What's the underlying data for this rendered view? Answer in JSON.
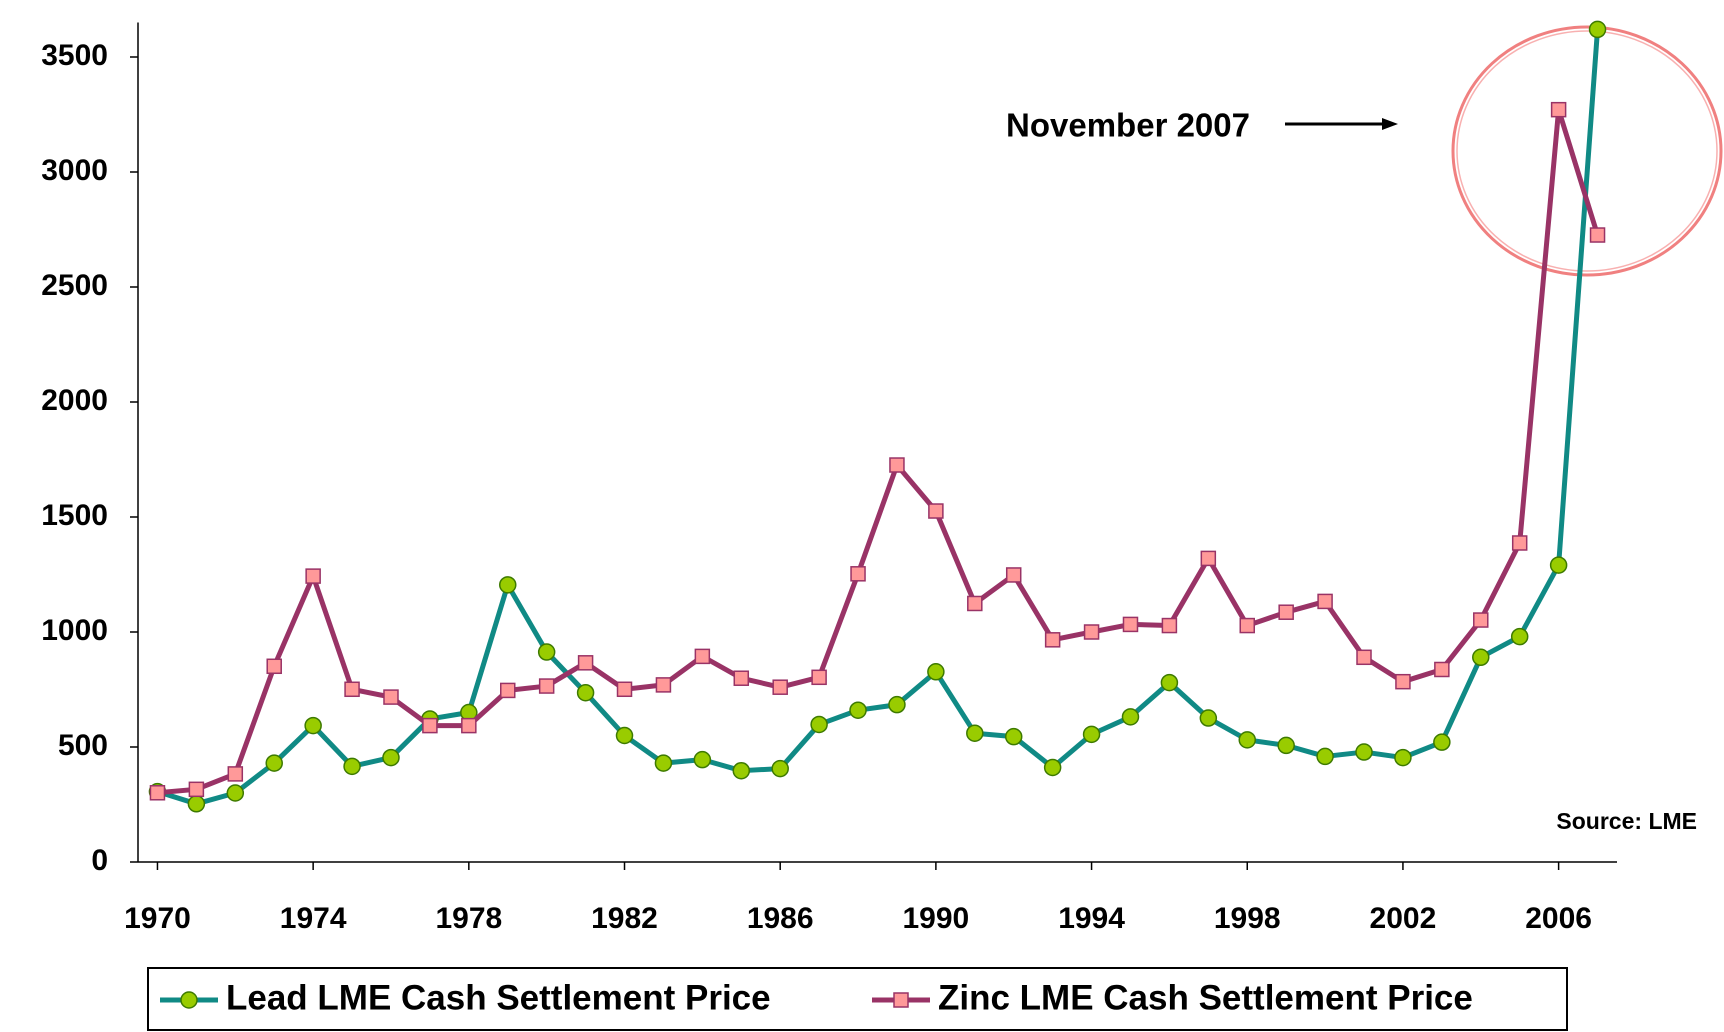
{
  "chart_data": {
    "type": "line",
    "x": [
      1970,
      1971,
      1972,
      1973,
      1974,
      1975,
      1976,
      1977,
      1978,
      1979,
      1980,
      1981,
      1982,
      1983,
      1984,
      1985,
      1986,
      1987,
      1988,
      1989,
      1990,
      1991,
      1992,
      1993,
      1994,
      1995,
      1996,
      1997,
      1998,
      1999,
      2000,
      2001,
      2002,
      2003,
      2004,
      2005,
      2006,
      2007
    ],
    "xlim": [
      1969.5,
      2007.5
    ],
    "xticks": [
      1970,
      1974,
      1978,
      1982,
      1986,
      1990,
      1994,
      1998,
      2002,
      2006
    ],
    "ylim": [
      0,
      3650
    ],
    "yticks": [
      0,
      500,
      1000,
      1500,
      2000,
      2500,
      3000,
      3500
    ],
    "series": [
      {
        "name": "Lead LME Cash Settlement Price",
        "color": "#108a85",
        "marker_color": "#99cc00",
        "values": [
          306,
          253,
          300,
          430,
          593,
          416,
          454,
          622,
          650,
          1205,
          913,
          736,
          550,
          430,
          445,
          397,
          406,
          598,
          660,
          684,
          827,
          560,
          545,
          411,
          555,
          631,
          780,
          626,
          531,
          507,
          459,
          478,
          454,
          521,
          890,
          980,
          1291,
          3620
        ]
      },
      {
        "name": "Zinc LME Cash Settlement Price",
        "color": "#993366",
        "marker_color": "#ff9999",
        "values": [
          301,
          316,
          383,
          851,
          1243,
          751,
          717,
          593,
          593,
          746,
          765,
          866,
          751,
          770,
          894,
          799,
          760,
          803,
          1253,
          1726,
          1526,
          1124,
          1248,
          966,
          1000,
          1033,
          1028,
          1320,
          1028,
          1086,
          1133,
          890,
          784,
          837,
          1052,
          1387,
          3271,
          2726
        ]
      }
    ],
    "annotations": [
      "November 2007",
      "Source: LME"
    ],
    "legend": "bottom"
  }
}
